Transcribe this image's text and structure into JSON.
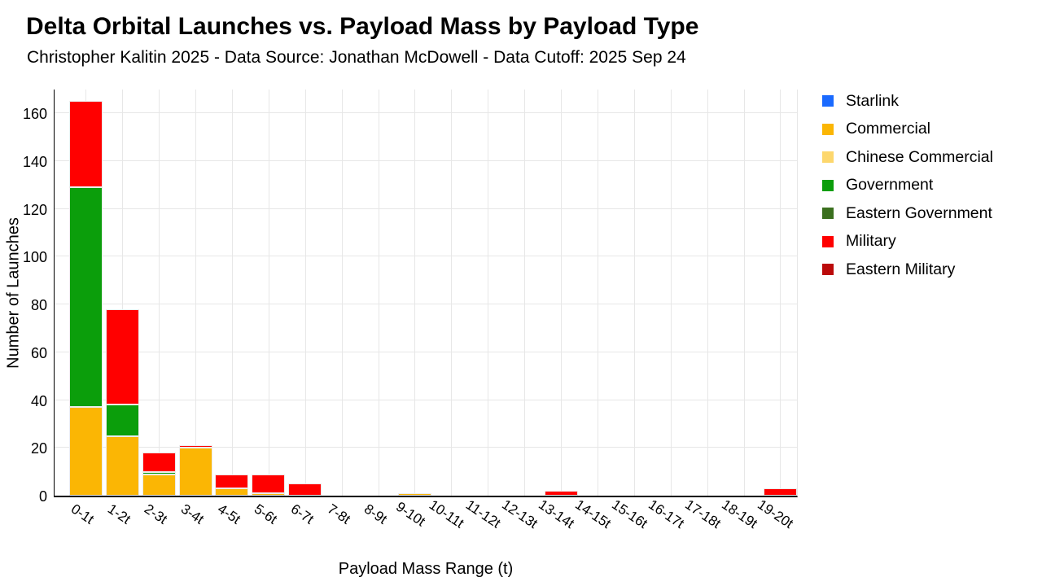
{
  "header": {
    "title": "Delta Orbital Launches vs. Payload Mass by Payload Type",
    "subtitle": "Christopher Kalitin 2025 - Data Source: Jonathan McDowell - Data Cutoff: 2025 Sep 24"
  },
  "axes": {
    "y_title": "Number of Launches",
    "x_title": "Payload Mass Range (t)",
    "y_ticks": [
      0,
      20,
      40,
      60,
      80,
      100,
      120,
      140,
      160
    ]
  },
  "legend": [
    {
      "label": "Starlink",
      "color": "#1a6aff"
    },
    {
      "label": "Commercial",
      "color": "#fbb604"
    },
    {
      "label": "Chinese Commercial",
      "color": "#fdd76d"
    },
    {
      "label": "Government",
      "color": "#0b9e0b"
    },
    {
      "label": "Eastern Government",
      "color": "#3b701f"
    },
    {
      "label": "Military",
      "color": "#ff0000"
    },
    {
      "label": "Eastern Military",
      "color": "#bb0a0a"
    }
  ],
  "chart_data": {
    "type": "bar",
    "stacked": true,
    "title": "Delta Orbital Launches vs. Payload Mass by Payload Type",
    "subtitle": "Christopher Kalitin 2025 - Data Source: Jonathan McDowell - Data Cutoff: 2025 Sep 24",
    "xlabel": "Payload Mass Range (t)",
    "ylabel": "Number of Launches",
    "ylim": [
      0,
      170
    ],
    "grid": true,
    "legend_position": "right",
    "categories": [
      "0-1t",
      "1-2t",
      "2-3t",
      "3-4t",
      "4-5t",
      "5-6t",
      "6-7t",
      "7-8t",
      "8-9t",
      "9-10t",
      "10-11t",
      "11-12t",
      "12-13t",
      "13-14t",
      "14-15t",
      "15-16t",
      "16-17t",
      "17-18t",
      "18-19t",
      "19-20t"
    ],
    "series": [
      {
        "name": "Starlink",
        "color": "#1a6aff",
        "values": [
          0,
          0,
          0,
          0,
          0,
          0,
          0,
          0,
          0,
          0,
          0,
          0,
          0,
          0,
          0,
          0,
          0,
          0,
          0,
          0
        ]
      },
      {
        "name": "Commercial",
        "color": "#fbb604",
        "values": [
          37,
          25,
          9,
          20,
          3,
          1,
          0,
          0,
          0,
          1,
          0,
          0,
          0,
          0,
          0,
          0,
          0,
          0,
          0,
          0
        ]
      },
      {
        "name": "Chinese Commercial",
        "color": "#fdd76d",
        "values": [
          0,
          0,
          0,
          0,
          0,
          0,
          0,
          0,
          0,
          0,
          0,
          0,
          0,
          0,
          0,
          0,
          0,
          0,
          0,
          0
        ]
      },
      {
        "name": "Government",
        "color": "#0b9e0b",
        "values": [
          92,
          13,
          1,
          0,
          0,
          0,
          0,
          0,
          0,
          0,
          0,
          0,
          0,
          0,
          0,
          0,
          0,
          0,
          0,
          0
        ]
      },
      {
        "name": "Eastern Government",
        "color": "#3b701f",
        "values": [
          0,
          0,
          0,
          0,
          0,
          0,
          0,
          0,
          0,
          0,
          0,
          0,
          0,
          0,
          0,
          0,
          0,
          0,
          0,
          0
        ]
      },
      {
        "name": "Military",
        "color": "#ff0000",
        "values": [
          36,
          40,
          8,
          1,
          6,
          8,
          5,
          0,
          0,
          0,
          0,
          0,
          0,
          2,
          0,
          0,
          0,
          0,
          0,
          3
        ]
      },
      {
        "name": "Eastern Military",
        "color": "#bb0a0a",
        "values": [
          0,
          0,
          0,
          0,
          0,
          0,
          0,
          0,
          0,
          0,
          0,
          0,
          0,
          0,
          0,
          0,
          0,
          0,
          0,
          0
        ]
      }
    ]
  }
}
